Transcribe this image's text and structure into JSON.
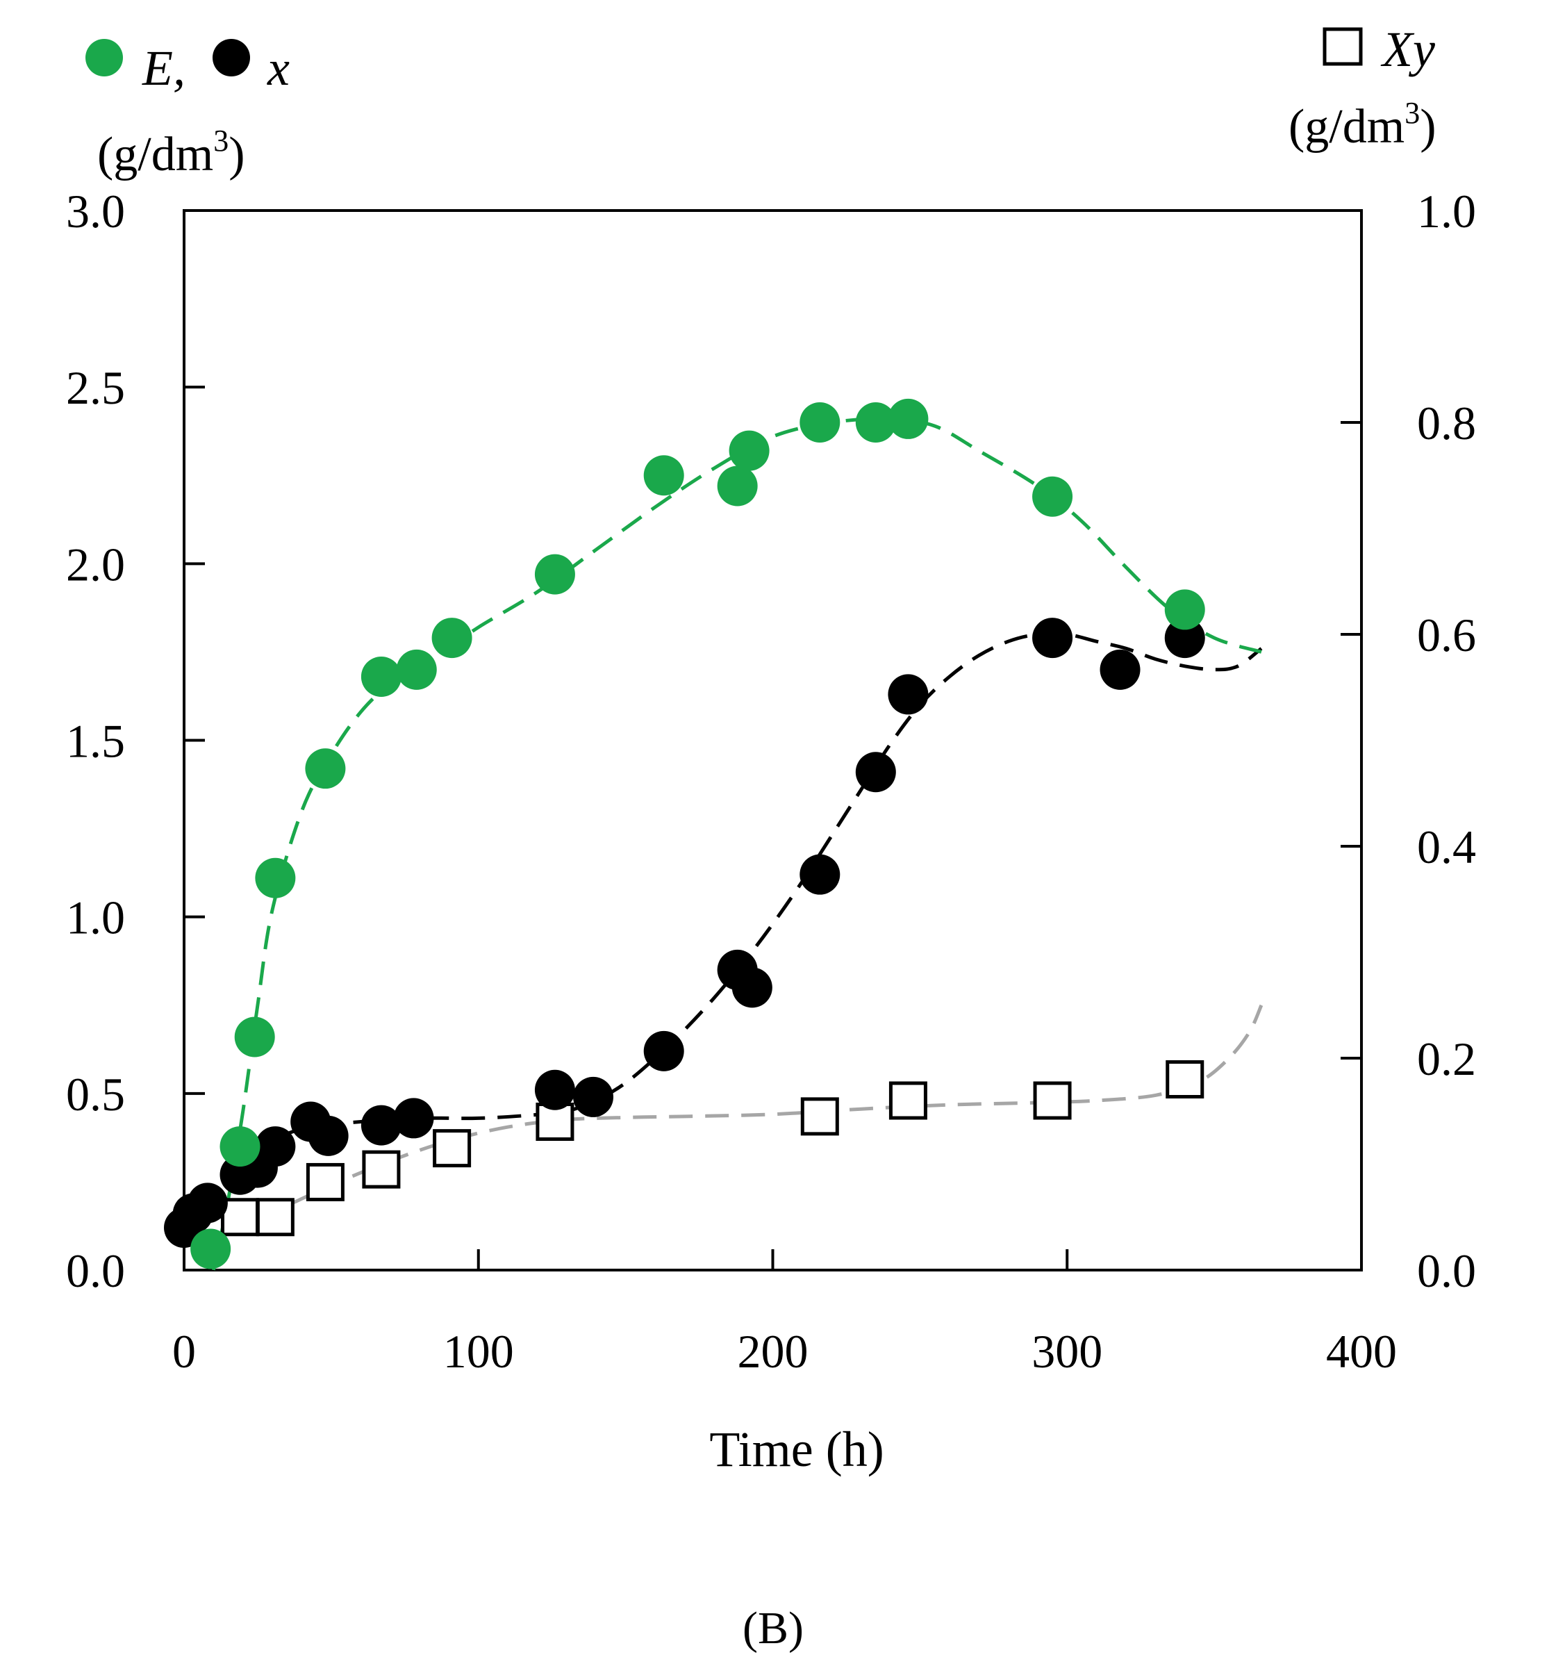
{
  "chart_data": {
    "type": "scatter",
    "panel_label": "(B)",
    "xlabel": "Time (h)",
    "xlim": [
      0,
      400
    ],
    "x_ticks": [
      "0",
      "100",
      "200",
      "300",
      "400"
    ],
    "left_axis": {
      "ylim": [
        0,
        3.0
      ],
      "ticks": [
        "0.0",
        "0.5",
        "1.0",
        "1.5",
        "2.0",
        "2.5",
        "3.0"
      ],
      "tick_values": [
        0,
        0.5,
        1.0,
        1.5,
        2.0,
        2.5,
        3.0
      ],
      "unit_base": "(g/dm",
      "unit_sup": "3",
      "unit_close": ")"
    },
    "right_axis": {
      "ylim": [
        0,
        1.0
      ],
      "ticks": [
        "0.0",
        "0.2",
        "0.4",
        "0.6",
        "0.8",
        "1.0"
      ],
      "tick_values": [
        0,
        0.2,
        0.4,
        0.6,
        0.8,
        1.0
      ],
      "unit_base": "(g/dm",
      "unit_sup": "3",
      "unit_close": ")"
    },
    "legend": {
      "left_first": "E,",
      "left_second": "x",
      "right": "Xy"
    },
    "series": [
      {
        "name": "E",
        "axis": "left",
        "marker": "circle",
        "color": "#1aa84b",
        "points": [
          [
            9,
            0.06
          ],
          [
            19,
            0.35
          ],
          [
            24,
            0.66
          ],
          [
            31,
            1.11
          ],
          [
            48,
            1.42
          ],
          [
            67,
            1.68
          ],
          [
            79,
            1.7
          ],
          [
            91,
            1.79
          ],
          [
            126,
            1.97
          ],
          [
            163,
            2.25
          ],
          [
            188,
            2.22
          ],
          [
            192,
            2.32
          ],
          [
            216,
            2.4
          ],
          [
            235,
            2.4
          ],
          [
            246,
            2.41
          ],
          [
            295,
            2.19
          ],
          [
            340,
            1.87
          ]
        ],
        "fit": [
          [
            10,
            0.0
          ],
          [
            15,
            0.2
          ],
          [
            20,
            0.45
          ],
          [
            25,
            0.75
          ],
          [
            30,
            1.02
          ],
          [
            40,
            1.3
          ],
          [
            50,
            1.46
          ],
          [
            60,
            1.58
          ],
          [
            70,
            1.66
          ],
          [
            80,
            1.71
          ],
          [
            90,
            1.76
          ],
          [
            100,
            1.82
          ],
          [
            120,
            1.92
          ],
          [
            140,
            2.04
          ],
          [
            160,
            2.16
          ],
          [
            180,
            2.27
          ],
          [
            200,
            2.36
          ],
          [
            220,
            2.4
          ],
          [
            240,
            2.41
          ],
          [
            255,
            2.39
          ],
          [
            270,
            2.32
          ],
          [
            290,
            2.22
          ],
          [
            305,
            2.12
          ],
          [
            320,
            1.99
          ],
          [
            335,
            1.87
          ],
          [
            350,
            1.79
          ],
          [
            366,
            1.75
          ]
        ]
      },
      {
        "name": "x",
        "axis": "left",
        "marker": "circle",
        "color": "#000000",
        "points": [
          [
            0,
            0.12
          ],
          [
            3,
            0.16
          ],
          [
            8,
            0.19
          ],
          [
            19,
            0.27
          ],
          [
            25,
            0.29
          ],
          [
            31,
            0.35
          ],
          [
            43,
            0.42
          ],
          [
            49,
            0.38
          ],
          [
            67,
            0.41
          ],
          [
            78,
            0.43
          ],
          [
            126,
            0.51
          ],
          [
            139,
            0.49
          ],
          [
            163,
            0.62
          ],
          [
            188,
            0.85
          ],
          [
            193,
            0.8
          ],
          [
            216,
            1.12
          ],
          [
            235,
            1.41
          ],
          [
            246,
            1.63
          ],
          [
            295,
            1.79
          ],
          [
            318,
            1.7
          ],
          [
            340,
            1.79
          ]
        ],
        "fit": [
          [
            15,
            0.25
          ],
          [
            25,
            0.34
          ],
          [
            40,
            0.4
          ],
          [
            60,
            0.42
          ],
          [
            80,
            0.43
          ],
          [
            100,
            0.43
          ],
          [
            120,
            0.44
          ],
          [
            130,
            0.45
          ],
          [
            140,
            0.48
          ],
          [
            150,
            0.53
          ],
          [
            160,
            0.6
          ],
          [
            170,
            0.68
          ],
          [
            180,
            0.77
          ],
          [
            190,
            0.87
          ],
          [
            200,
            0.98
          ],
          [
            210,
            1.1
          ],
          [
            220,
            1.23
          ],
          [
            230,
            1.36
          ],
          [
            240,
            1.49
          ],
          [
            250,
            1.6
          ],
          [
            260,
            1.68
          ],
          [
            270,
            1.74
          ],
          [
            280,
            1.78
          ],
          [
            290,
            1.8
          ],
          [
            300,
            1.8
          ],
          [
            310,
            1.78
          ],
          [
            320,
            1.76
          ],
          [
            330,
            1.73
          ],
          [
            340,
            1.71
          ],
          [
            350,
            1.7
          ],
          [
            358,
            1.71
          ],
          [
            366,
            1.76
          ]
        ]
      },
      {
        "name": "Xy",
        "axis": "right",
        "marker": "square",
        "color": "#000000",
        "points": [
          [
            19,
            0.05
          ],
          [
            31,
            0.05
          ],
          [
            48,
            0.083
          ],
          [
            67,
            0.095
          ],
          [
            91,
            0.115
          ],
          [
            126,
            0.14
          ],
          [
            216,
            0.145
          ],
          [
            246,
            0.16
          ],
          [
            295,
            0.16
          ],
          [
            340,
            0.18
          ]
        ],
        "fit": [
          [
            0,
            0.065
          ],
          [
            10,
            0.052
          ],
          [
            20,
            0.048
          ],
          [
            30,
            0.055
          ],
          [
            50,
            0.08
          ],
          [
            70,
            0.103
          ],
          [
            90,
            0.122
          ],
          [
            110,
            0.135
          ],
          [
            130,
            0.142
          ],
          [
            150,
            0.144
          ],
          [
            170,
            0.145
          ],
          [
            200,
            0.147
          ],
          [
            230,
            0.152
          ],
          [
            260,
            0.156
          ],
          [
            290,
            0.158
          ],
          [
            310,
            0.16
          ],
          [
            330,
            0.165
          ],
          [
            345,
            0.178
          ],
          [
            355,
            0.2
          ],
          [
            362,
            0.225
          ],
          [
            366,
            0.25
          ]
        ],
        "fit_color": "#a6a6a6"
      }
    ]
  }
}
